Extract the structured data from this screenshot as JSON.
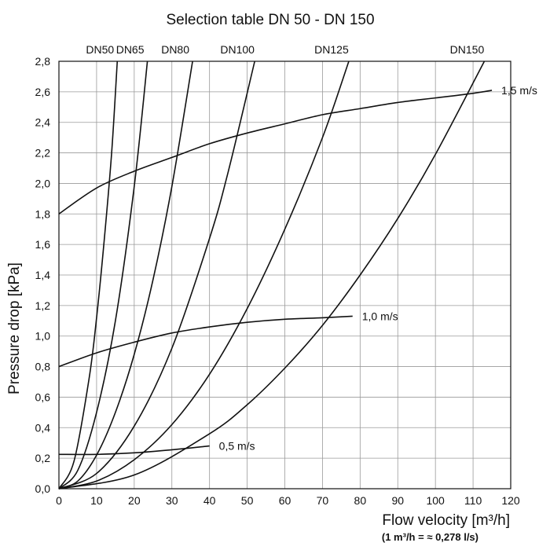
{
  "chart_data": {
    "type": "line",
    "title": "Selection table DN 50 - DN 150",
    "xlabel": "Flow velocity [m³/h]",
    "xlabel_note": "(1 m³/h = ≈ 0,278 l/s)",
    "ylabel": "Pressure drop [kPa]",
    "xlim": [
      0,
      120
    ],
    "ylim": [
      0,
      2.8
    ],
    "x_ticks": [
      0,
      10,
      20,
      30,
      40,
      50,
      60,
      70,
      80,
      90,
      100,
      110,
      120
    ],
    "y_ticks": [
      "0,0",
      "0,2",
      "0,4",
      "0,6",
      "0,8",
      "1,0",
      "1,2",
      "1,4",
      "1,6",
      "1,8",
      "2,0",
      "2,2",
      "2,4",
      "2,6",
      "2,8"
    ],
    "x_tick_labels": [
      "0",
      "10",
      "20",
      "30",
      "40",
      "50",
      "60",
      "70",
      "80",
      "90",
      "100",
      "110",
      "120"
    ],
    "grid": true,
    "series": [
      {
        "name": "DN50",
        "label": "DN50",
        "x": [
          0,
          4,
          8,
          10,
          12,
          14,
          15.5
        ],
        "y": [
          0,
          0.18,
          0.72,
          1.12,
          1.62,
          2.2,
          2.8
        ]
      },
      {
        "name": "DN65",
        "label": "DN65",
        "x": [
          0,
          5,
          10,
          15,
          20,
          23.5
        ],
        "y": [
          0,
          0.12,
          0.5,
          1.1,
          1.98,
          2.8
        ]
      },
      {
        "name": "DN80",
        "label": "DN80",
        "x": [
          0,
          5,
          10,
          15,
          20,
          25,
          30,
          35.5
        ],
        "y": [
          0,
          0.05,
          0.22,
          0.5,
          0.88,
          1.37,
          1.98,
          2.8
        ]
      },
      {
        "name": "DN100",
        "label": "DN100",
        "x": [
          0,
          10,
          20,
          30,
          40,
          45,
          52
        ],
        "y": [
          0,
          0.1,
          0.41,
          0.92,
          1.64,
          2.08,
          2.8
        ]
      },
      {
        "name": "DN125",
        "label": "DN125",
        "x": [
          0,
          10,
          20,
          30,
          40,
          50,
          60,
          70,
          77
        ],
        "y": [
          0,
          0.05,
          0.19,
          0.42,
          0.75,
          1.18,
          1.7,
          2.3,
          2.8
        ]
      },
      {
        "name": "DN150",
        "label": "DN150",
        "x": [
          0,
          20,
          40,
          50,
          60,
          70,
          80,
          90,
          100,
          113
        ],
        "y": [
          0,
          0.09,
          0.36,
          0.55,
          0.79,
          1.07,
          1.4,
          1.77,
          2.19,
          2.8
        ]
      },
      {
        "name": "1,5 m/s",
        "label": "1,5 m/s",
        "x": [
          0,
          10,
          20,
          30,
          40,
          50,
          60,
          70,
          80,
          90,
          100,
          110,
          115
        ],
        "y": [
          1.8,
          1.97,
          2.08,
          2.17,
          2.26,
          2.33,
          2.39,
          2.45,
          2.49,
          2.53,
          2.56,
          2.59,
          2.61
        ]
      },
      {
        "name": "1,0 m/s",
        "label": "1,0 m/s",
        "x": [
          0,
          10,
          20,
          30,
          40,
          50,
          60,
          70,
          78
        ],
        "y": [
          0.8,
          0.89,
          0.96,
          1.02,
          1.06,
          1.09,
          1.11,
          1.12,
          1.13
        ]
      },
      {
        "name": "0,5 m/s",
        "label": "0,5 m/s",
        "x": [
          0,
          10,
          20,
          30,
          40
        ],
        "y": [
          0.225,
          0.225,
          0.235,
          0.255,
          0.28
        ]
      }
    ]
  }
}
